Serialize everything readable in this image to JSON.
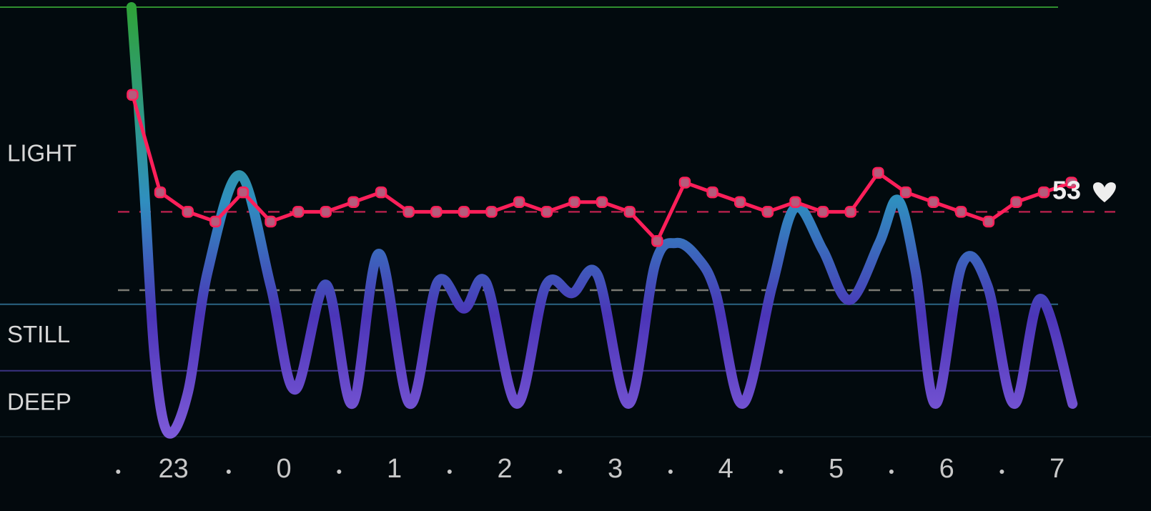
{
  "chart_data": {
    "type": "line",
    "xlim": [
      21.43,
      31.85
    ],
    "xticks": [
      23,
      {
        "value": 24,
        "label": "0"
      },
      {
        "value": 25,
        "label": "1"
      },
      {
        "value": 26,
        "label": "2"
      },
      {
        "value": 27,
        "label": "3"
      },
      {
        "value": 28,
        "label": "4"
      },
      {
        "value": 29,
        "label": "5"
      },
      {
        "value": 30,
        "label": "6"
      },
      {
        "value": 31,
        "label": "7"
      }
    ],
    "ylim": [
      28,
      72
    ],
    "y2lim": [
      0,
      100
    ],
    "y2ticks": [
      {
        "value": 65.5,
        "label": "LIGHT"
      },
      {
        "value": 23.3,
        "label": "STILL"
      },
      {
        "value": 7.5,
        "label": "DEEP"
      }
    ],
    "thresholds": [
      {
        "value": 100,
        "color": "#2f8f2f"
      },
      {
        "value": 30.7,
        "color": "#2b6584"
      },
      {
        "value": 15.2,
        "color": "#3a3282"
      }
    ],
    "reference_lines": [
      {
        "axis": "y",
        "value": 51,
        "color": "#b0204a"
      },
      {
        "axis": "y2",
        "value": 34,
        "color": "#7a7a72"
      }
    ],
    "series": [
      {
        "color": "#ff1f5a",
        "marker_color": "#b65b7c",
        "x": [
          22.63,
          22.88,
          23.13,
          23.38,
          23.63,
          23.88,
          24.13,
          24.38,
          24.63,
          24.88,
          25.13,
          25.38,
          25.63,
          25.88,
          26.13,
          26.38,
          26.63,
          26.88,
          27.13,
          27.38,
          27.63,
          27.88,
          28.13,
          28.38,
          28.63,
          28.88,
          29.13,
          29.38,
          29.63,
          29.88,
          30.13,
          30.38,
          30.63,
          30.88,
          31.13
        ],
        "values": [
          63,
          53,
          51,
          50,
          53,
          50,
          51,
          51,
          52,
          53,
          51,
          51,
          51,
          51,
          52,
          51,
          52,
          52,
          51,
          48,
          54,
          53,
          52,
          51,
          52,
          51,
          51,
          55,
          53,
          52,
          51,
          50,
          52,
          53,
          54
        ]
      },
      {
        "axis": "y2",
        "gradient": [
          "#2fa33a",
          "#2f8fbf",
          "#4b35b8",
          "#7d5ad8"
        ],
        "x": [
          22.62,
          22.73,
          22.83,
          22.95,
          23.13,
          23.31,
          23.6,
          23.88,
          24.1,
          24.38,
          24.62,
          24.86,
          25.14,
          25.39,
          25.63,
          25.83,
          26.11,
          26.37,
          26.61,
          26.84,
          27.12,
          27.36,
          27.55,
          27.74,
          27.91,
          28.15,
          28.42,
          28.63,
          28.88,
          29.12,
          29.39,
          29.56,
          29.72,
          29.9,
          30.14,
          30.37,
          30.61,
          30.85,
          31.14
        ],
        "values": [
          100,
          60,
          18.3,
          0.8,
          10,
          38.3,
          60.8,
          35,
          10.8,
          35.3,
          7.5,
          42.5,
          7.5,
          35.8,
          29.7,
          35.8,
          7.5,
          35,
          33.3,
          37.5,
          7.5,
          40,
          45,
          41.7,
          33.3,
          7.5,
          35,
          53.3,
          43.3,
          31.7,
          45,
          55,
          38.3,
          7.5,
          40,
          35,
          7.5,
          32,
          7.5
        ]
      }
    ],
    "annotation": 53
  }
}
